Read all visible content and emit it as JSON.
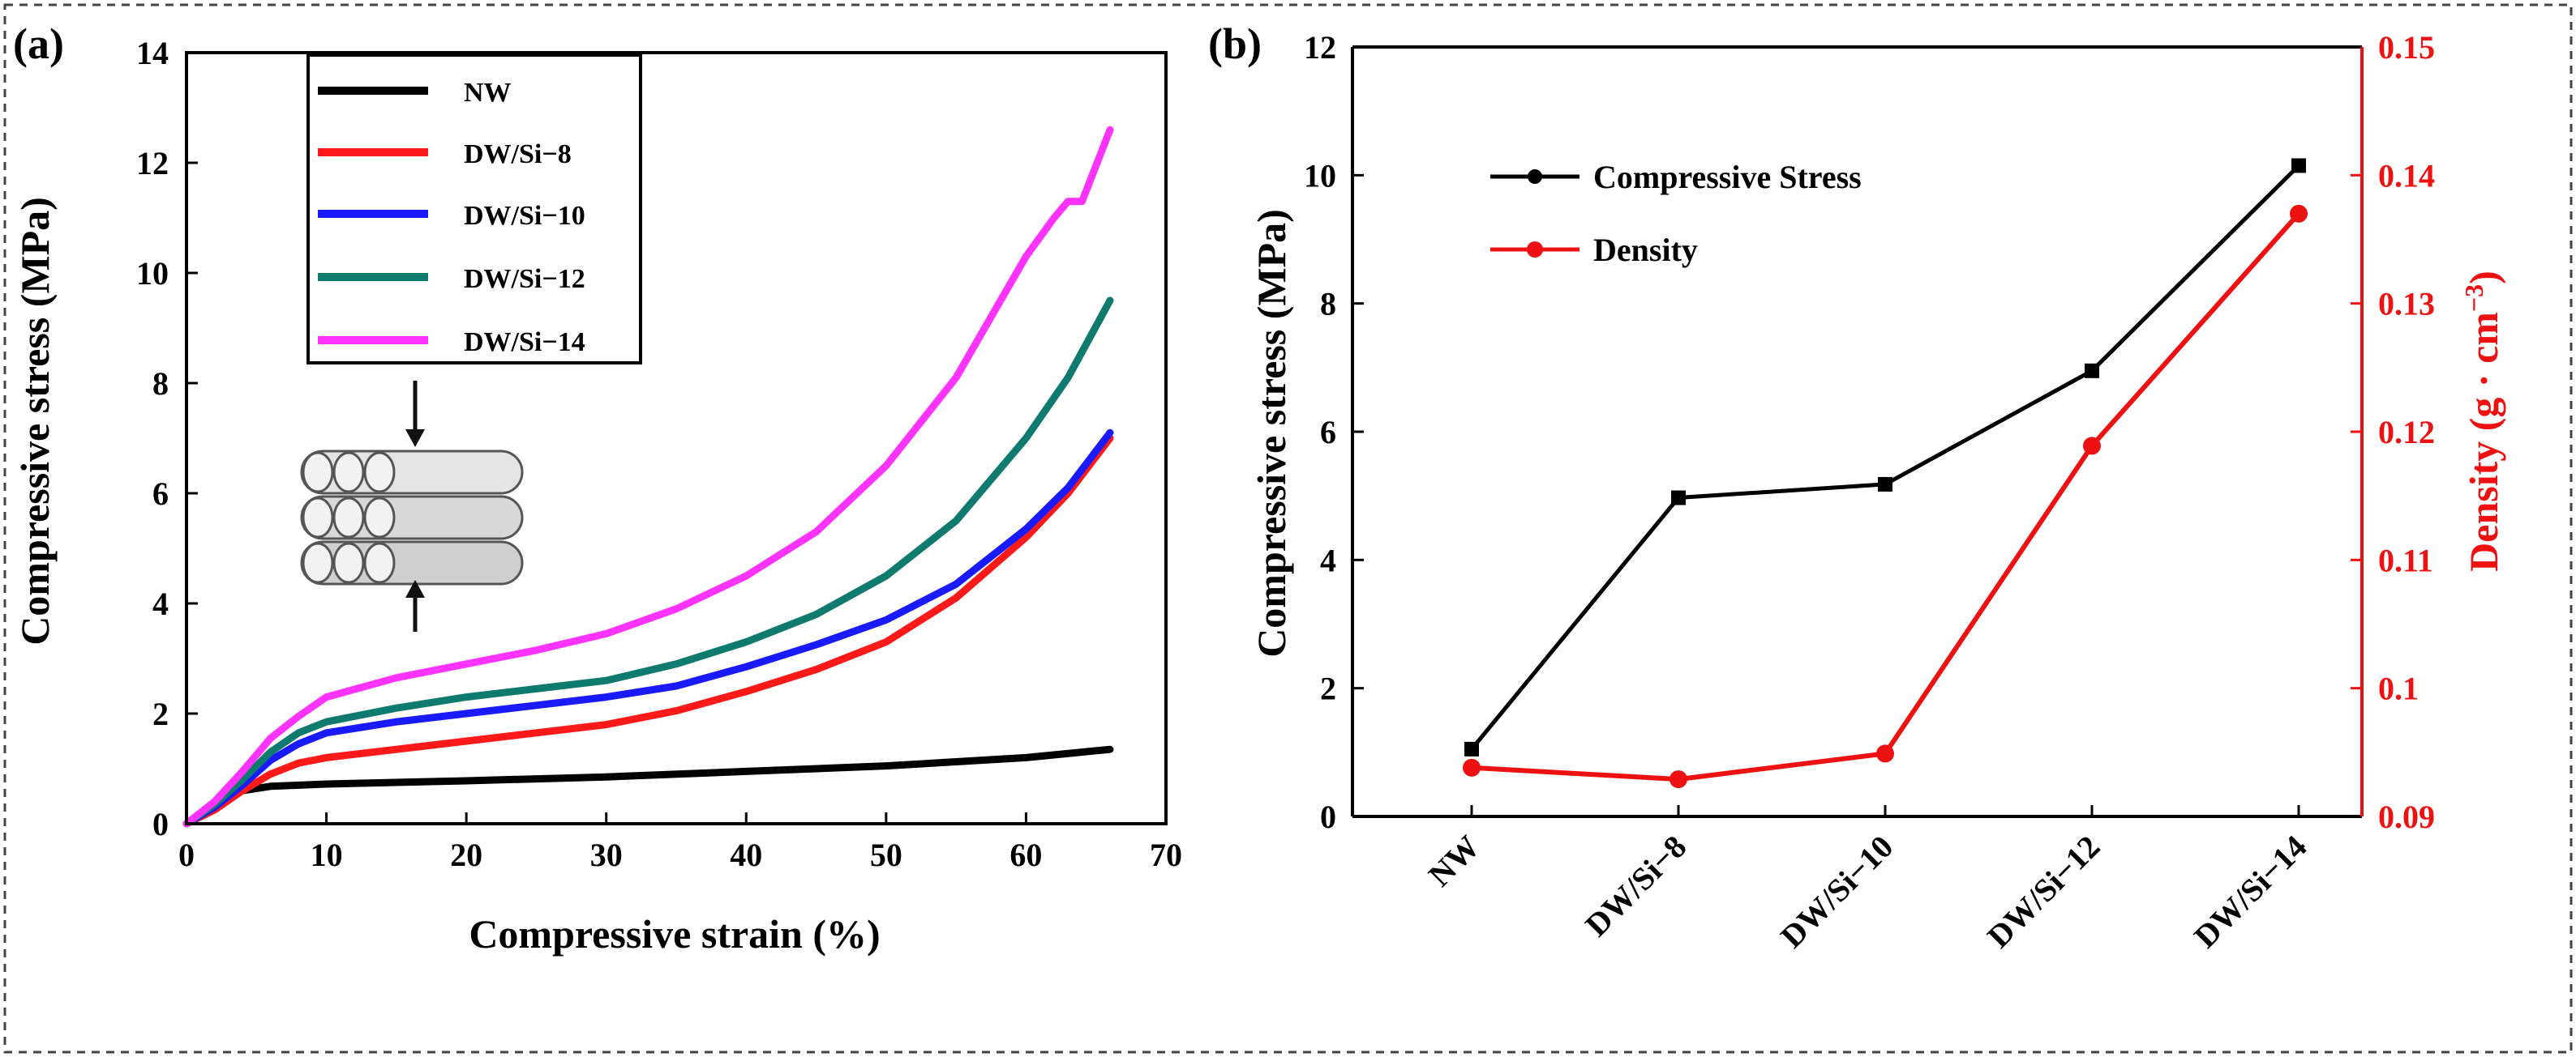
{
  "frame_label": "dashed figure border",
  "chart_data": [
    {
      "panel": "(a)",
      "type": "line",
      "xlabel": "Compressive strain (%)",
      "ylabel": "Compressive stress (MPa)",
      "xlim": [
        0,
        70
      ],
      "ylim": [
        0,
        14
      ],
      "xticks": [
        "0",
        "10",
        "20",
        "30",
        "40",
        "50",
        "60",
        "70"
      ],
      "yticks": [
        "0",
        "2",
        "4",
        "6",
        "8",
        "10",
        "12",
        "14"
      ],
      "legend_position": "top-left",
      "inset": "stacked hollow fibres under vertical compression (arrows)",
      "series": [
        {
          "name": "NW",
          "color": "#000000",
          "x": [
            0,
            2,
            4,
            6,
            10,
            20,
            30,
            40,
            50,
            60,
            66
          ],
          "y": [
            0,
            0.35,
            0.6,
            0.68,
            0.72,
            0.78,
            0.85,
            0.95,
            1.05,
            1.2,
            1.35
          ]
        },
        {
          "name": "DW/Si−8",
          "color": "#ff1a1a",
          "x": [
            0,
            2,
            4,
            6,
            8,
            10,
            15,
            20,
            25,
            30,
            35,
            40,
            45,
            50,
            55,
            60,
            63,
            66
          ],
          "y": [
            0,
            0.25,
            0.6,
            0.9,
            1.1,
            1.2,
            1.35,
            1.5,
            1.65,
            1.8,
            2.05,
            2.4,
            2.8,
            3.3,
            4.1,
            5.2,
            6.0,
            7.0
          ]
        },
        {
          "name": "DW/Si−10",
          "color": "#1a1aff",
          "x": [
            0,
            2,
            4,
            6,
            8,
            10,
            15,
            20,
            25,
            30,
            35,
            40,
            45,
            50,
            55,
            60,
            63,
            66
          ],
          "y": [
            0,
            0.3,
            0.7,
            1.15,
            1.45,
            1.65,
            1.85,
            2.0,
            2.15,
            2.3,
            2.5,
            2.85,
            3.25,
            3.7,
            4.35,
            5.35,
            6.1,
            7.1
          ]
        },
        {
          "name": "DW/Si−12",
          "color": "#0f7a6e",
          "x": [
            0,
            2,
            4,
            6,
            8,
            10,
            15,
            20,
            25,
            30,
            35,
            40,
            45,
            50,
            55,
            60,
            63,
            66
          ],
          "y": [
            0,
            0.35,
            0.8,
            1.3,
            1.65,
            1.85,
            2.1,
            2.3,
            2.45,
            2.6,
            2.9,
            3.3,
            3.8,
            4.5,
            5.5,
            7.0,
            8.1,
            9.5
          ]
        },
        {
          "name": "DW/Si−14",
          "color": "#ff33ff",
          "x": [
            0,
            2,
            4,
            6,
            8,
            10,
            15,
            20,
            25,
            30,
            35,
            40,
            45,
            50,
            55,
            60,
            62,
            63,
            64,
            66
          ],
          "y": [
            0,
            0.4,
            0.95,
            1.55,
            1.95,
            2.3,
            2.65,
            2.9,
            3.15,
            3.45,
            3.9,
            4.5,
            5.3,
            6.5,
            8.1,
            10.3,
            11.0,
            11.3,
            11.3,
            12.6
          ]
        }
      ]
    },
    {
      "panel": "(b)",
      "type": "line",
      "categories": [
        "NW",
        "DW/Si−8",
        "DW/Si−10",
        "DW/Si−12",
        "DW/Si−14"
      ],
      "ylabel": "Compressive stress (MPa)",
      "ylim": [
        0,
        12
      ],
      "yticks": [
        "0",
        "2",
        "4",
        "6",
        "8",
        "10",
        "12"
      ],
      "y2label": "Density (g · cm",
      "y2label_exp": "−3",
      "y2label_close": ")",
      "y2lim": [
        0.09,
        0.15
      ],
      "y2ticks": [
        "0.09",
        "0.1",
        "0.11",
        "0.12",
        "0.13",
        "0.14",
        "0.15"
      ],
      "legend_position": "top-left",
      "series": [
        {
          "name": "Compressive Stress",
          "axis": "left",
          "color": "#000000",
          "values": [
            1.05,
            4.97,
            5.18,
            6.95,
            10.15
          ]
        },
        {
          "name": "Density",
          "axis": "right",
          "color": "#ee1111",
          "values": [
            0.0938,
            0.0929,
            0.0949,
            0.1189,
            0.137
          ]
        }
      ]
    }
  ]
}
